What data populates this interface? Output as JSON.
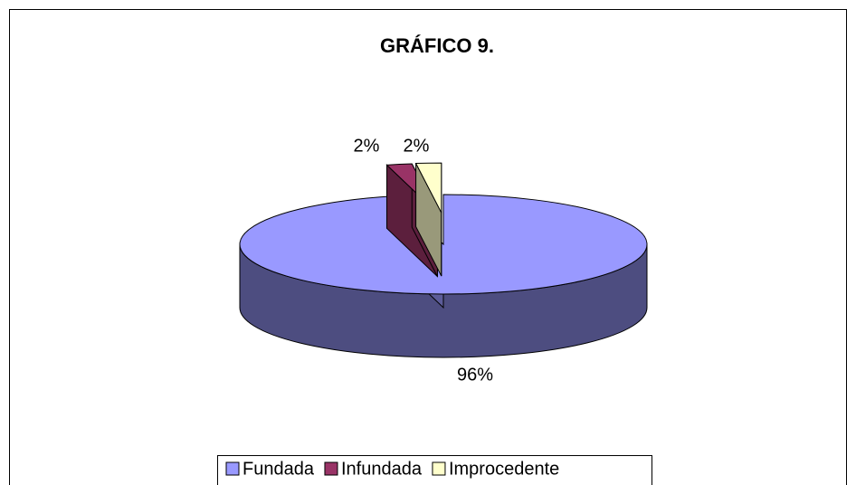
{
  "chart_data": {
    "type": "pie3d",
    "title": "GRÁFICO 9.",
    "categories": [
      "Fundada",
      "Infundada",
      "Improcedente"
    ],
    "values": [
      96,
      2,
      2
    ],
    "value_labels": [
      "96%",
      "2%",
      "2%"
    ],
    "colors": [
      "#9999ff",
      "#993366",
      "#ffffcc"
    ],
    "legend": "bottom"
  }
}
